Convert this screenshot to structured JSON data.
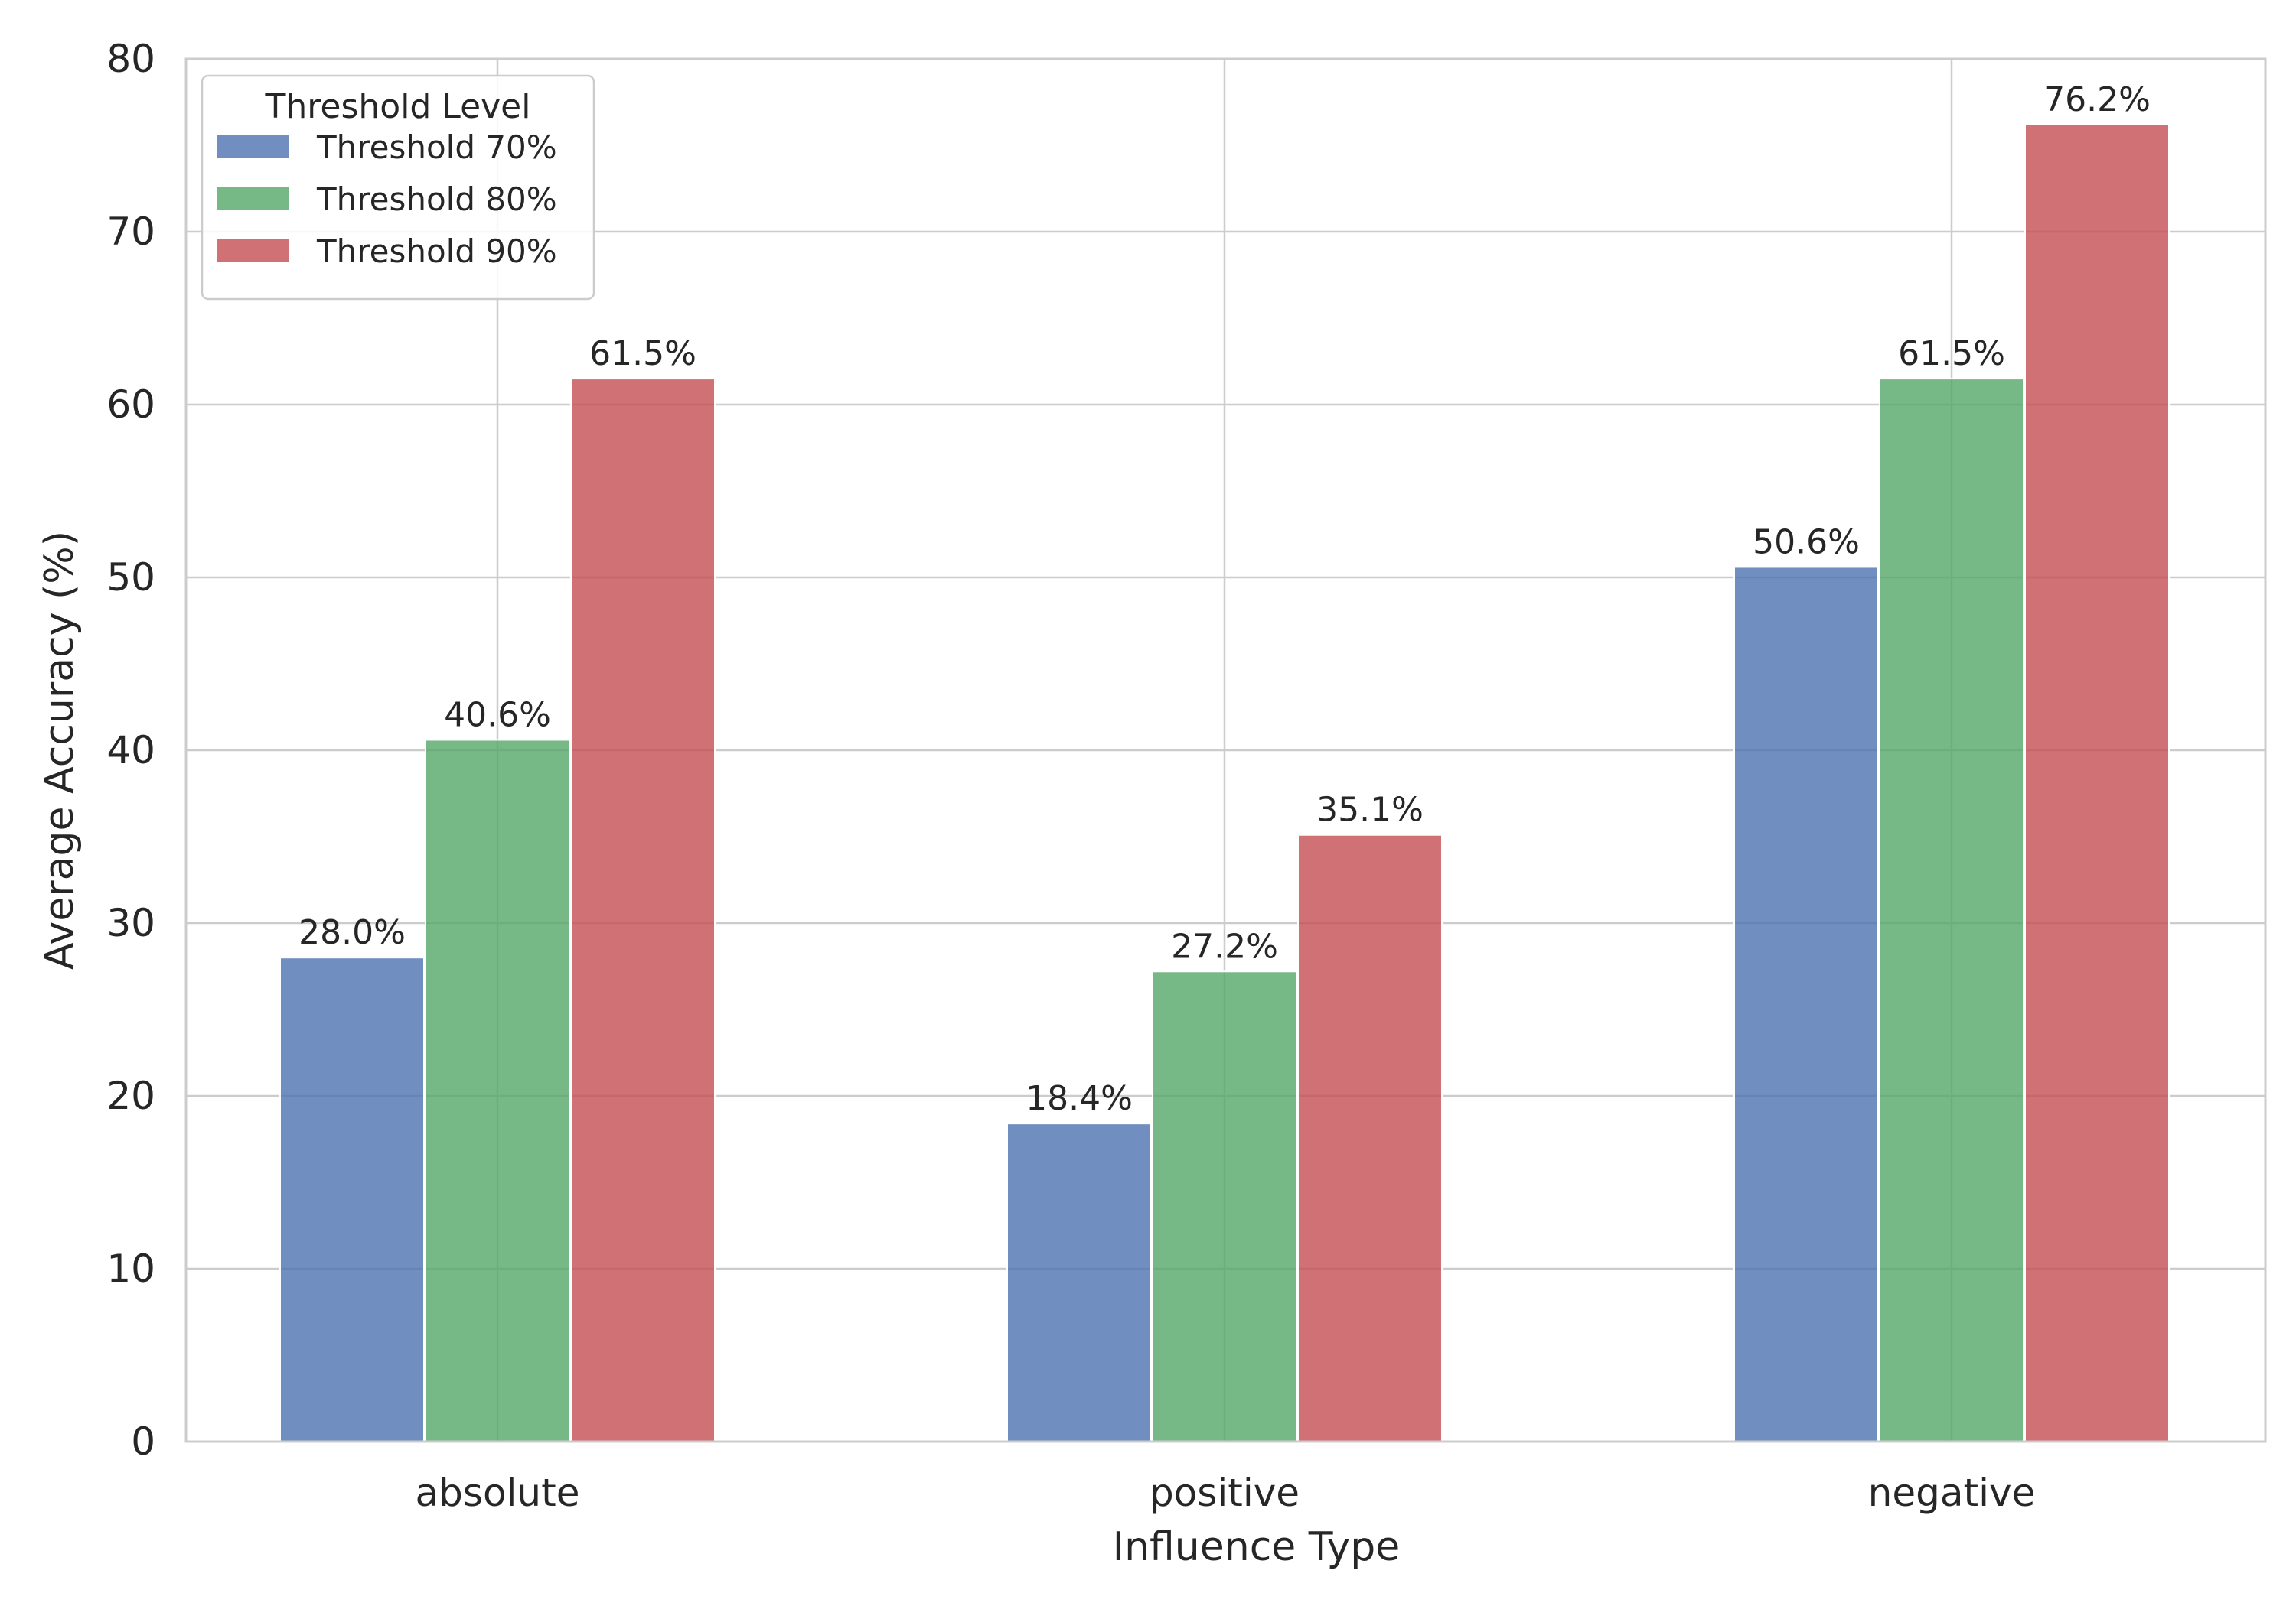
{
  "chart_data": {
    "type": "bar",
    "title": "",
    "xlabel": "Influence Type",
    "ylabel": "Average Accuracy (%)",
    "categories": [
      "absolute",
      "positive",
      "negative"
    ],
    "series": [
      {
        "name": "Threshold 70%",
        "color": "#4c72b0",
        "values": [
          28.0,
          18.4,
          50.6
        ],
        "labels": [
          "28.0%",
          "18.4%",
          "50.6%"
        ]
      },
      {
        "name": "Threshold 80%",
        "color": "#55a868",
        "values": [
          40.6,
          27.2,
          61.5
        ],
        "labels": [
          "40.6%",
          "27.2%",
          "61.5%"
        ]
      },
      {
        "name": "Threshold 90%",
        "color": "#c44e52",
        "values": [
          61.5,
          35.1,
          76.2
        ],
        "labels": [
          "61.5%",
          "35.1%",
          "76.2%"
        ]
      }
    ],
    "ylim": [
      0,
      80
    ],
    "yticks": [
      "0",
      "10",
      "20",
      "30",
      "40",
      "50",
      "60",
      "70",
      "80"
    ],
    "grid": true,
    "legend": {
      "title": "Threshold Level",
      "placement": "top-left"
    }
  }
}
